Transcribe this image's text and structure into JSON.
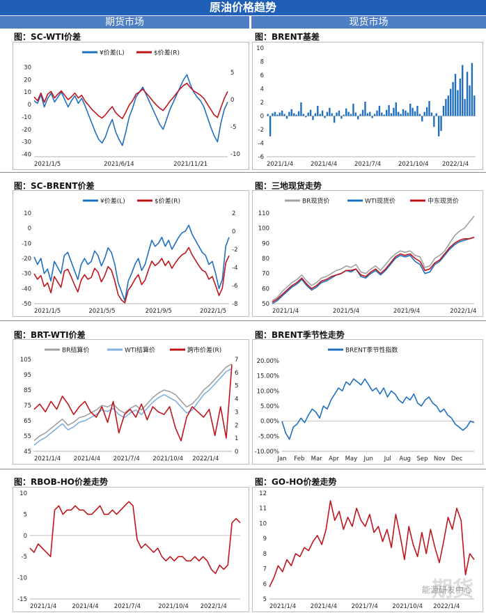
{
  "page": {
    "title": "原油价格趋势",
    "futures_header": "期货市场",
    "spot_header": "现货市场",
    "watermark": "期货",
    "watermark_sub": "能源研发中心"
  },
  "colors": {
    "blue": "#1f6fc0",
    "red": "#c0141c",
    "gray": "#a0a0a0",
    "lightblue": "#7fb0e0"
  },
  "chart_data": [
    {
      "id": "sc_wti",
      "panel_title": "图：SC-WTI价差",
      "type": "line",
      "x_ticks": [
        "2021/1/5",
        "2021/6/14",
        "2021/11/21"
      ],
      "x_tick_pos": [
        0.0,
        0.36,
        0.72
      ],
      "y_left": {
        "ticks": [
          30,
          20,
          10,
          0,
          -10,
          -20,
          -30,
          -40
        ],
        "range": [
          -42,
          32
        ]
      },
      "y_right": {
        "ticks": [
          5,
          0,
          -5,
          -10
        ],
        "range": [
          -10.5,
          6.4
        ]
      },
      "series": [
        {
          "name": "¥价差(L)",
          "axis": "left",
          "color": "blue",
          "values": [
            3,
            1,
            8,
            -2,
            5,
            9,
            2,
            6,
            10,
            4,
            -2,
            3,
            7,
            1,
            5,
            -1,
            -8,
            -15,
            -22,
            -28,
            -31,
            -26,
            -18,
            -12,
            -22,
            -28,
            -33,
            -22,
            -10,
            -3,
            6,
            10,
            14,
            8,
            2,
            -4,
            -10,
            -16,
            -20,
            -12,
            -4,
            2,
            8,
            14,
            20,
            24,
            16,
            10,
            6,
            3,
            -2,
            -10,
            -18,
            -25,
            -30,
            -15,
            -4,
            2
          ]
        },
        {
          "name": "$价差(R)",
          "axis": "right",
          "color": "red",
          "values": [
            0.5,
            -0.2,
            1.2,
            -0.5,
            1,
            1.5,
            0.3,
            1,
            1.6,
            0.8,
            0,
            0.5,
            1.2,
            0.3,
            0.8,
            -0.3,
            -1,
            -1.8,
            -2.4,
            -3,
            -3.4,
            -2.8,
            -2,
            -1.3,
            -2.4,
            -3,
            -3.5,
            -2.3,
            -1,
            -0.2,
            1,
            1.4,
            1.9,
            1.2,
            0.5,
            -0.3,
            -1,
            -1.6,
            -2,
            -1.2,
            -0.3,
            0.4,
            1.2,
            2,
            2.6,
            3,
            2.2,
            1.6,
            1.2,
            0.8,
            0.2,
            -0.8,
            -1.8,
            -2.8,
            -3.3,
            -1.5,
            0.2,
            1.5
          ]
        }
      ]
    },
    {
      "id": "brent_basis",
      "panel_title": "图：BRENT基差",
      "type": "bar",
      "x_ticks": [
        "2021/1/4",
        "2021/4/4",
        "2021/7/4",
        "2021/10/4",
        "2022/1/4"
      ],
      "x_tick_pos": [
        0.0,
        0.21,
        0.42,
        0.63,
        0.84
      ],
      "y_left": {
        "ticks": [
          10,
          8,
          6,
          4,
          2,
          0,
          -2,
          -4,
          -6
        ],
        "range": [
          -6,
          10
        ]
      },
      "series": [
        {
          "name": "BRENT基差",
          "axis": "left",
          "color": "blue",
          "values": [
            0.3,
            -3,
            0.4,
            0.6,
            0.2,
            0.5,
            0.8,
            0.3,
            -0.4,
            0.6,
            1,
            0.4,
            0.2,
            0.7,
            2,
            0.3,
            -0.2,
            0.5,
            0.9,
            -0.6,
            0.4,
            1.5,
            0.3,
            0.8,
            -0.3,
            0.6,
            1.2,
            0.4,
            -1,
            0.5,
            0.8,
            -0.4,
            0.2,
            1.1,
            0.6,
            0.3,
            1.8,
            0.5,
            -0.5,
            0.3,
            0.9,
            2.1,
            0.4,
            0.6,
            -0.3,
            0.3,
            0.8,
            1.5,
            0.5,
            0.2,
            0.9,
            1.6,
            0.4,
            1.2,
            2,
            0.6,
            0.3,
            1,
            0.8,
            0.5,
            1.8,
            1.2,
            0.7,
            1.5,
            0.3,
            -0.8,
            0.6,
            1.3,
            2.2,
            0.5,
            -1.6,
            0.4,
            -3,
            -2.2,
            1.5,
            2.5,
            3,
            4,
            5,
            6.2,
            3.8,
            5.5,
            7.5,
            2.5,
            6.5,
            4.5,
            7.8,
            3
          ]
        }
      ]
    },
    {
      "id": "sc_brent",
      "panel_title": "图：SC-BRENT价差",
      "type": "line",
      "x_ticks": [
        "2021/1/5",
        "2021/5/5",
        "2021/9/5",
        "2022/1/5"
      ],
      "x_tick_pos": [
        0.0,
        0.28,
        0.57,
        0.85
      ],
      "y_left": {
        "ticks": [
          10,
          0,
          -10,
          -20,
          -30,
          -40,
          -50
        ],
        "range": [
          -50,
          10
        ]
      },
      "y_right": {
        "ticks": [
          2,
          0,
          -2,
          -4,
          -6,
          -8
        ],
        "range": [
          -8,
          2
        ]
      },
      "series": [
        {
          "name": "¥价差(L)",
          "axis": "left",
          "color": "blue",
          "values": [
            -19,
            -24,
            -20,
            -30,
            -27,
            -35,
            -22,
            -26,
            -30,
            -18,
            -16,
            -22,
            -28,
            -34,
            -24,
            -20,
            -24,
            -22,
            -15,
            -18,
            -25,
            -20,
            -13,
            -16,
            -24,
            -36,
            -42,
            -48,
            -35,
            -30,
            -24,
            -20,
            -28,
            -24,
            -16,
            -8,
            -12,
            -10,
            -6,
            -12,
            -8,
            -14,
            -10,
            -6,
            -3,
            -2,
            2,
            -4,
            -8,
            -12,
            -16,
            -18,
            -24,
            -22,
            -30,
            -40,
            -34,
            -12,
            -6
          ]
        },
        {
          "name": "$价差(R)",
          "axis": "right",
          "color": "red",
          "values": [
            -4.7,
            -5.3,
            -4.9,
            -6.1,
            -5.7,
            -6.8,
            -5,
            -5.6,
            -6.2,
            -4.4,
            -4.2,
            -5,
            -5.9,
            -6.7,
            -5.4,
            -4.8,
            -5.3,
            -5.1,
            -4.1,
            -4.5,
            -5.6,
            -4.9,
            -3.9,
            -4.3,
            -5.5,
            -7,
            -7.6,
            -7.9,
            -6.5,
            -6,
            -5.3,
            -4.8,
            -5.9,
            -5.4,
            -4.3,
            -3.3,
            -3.8,
            -3.5,
            -3,
            -3.8,
            -3.3,
            -4.1,
            -3.5,
            -3,
            -2.6,
            -2.4,
            -1.8,
            -2.6,
            -3.2,
            -3.8,
            -4.3,
            -4.5,
            -5.3,
            -5,
            -6,
            -7.1,
            -6.3,
            -3.5,
            -2.7
          ]
        }
      ]
    },
    {
      "id": "spot_three",
      "panel_title": "图：三地现货走势",
      "type": "line",
      "x_ticks": [
        "2021/1/4",
        "2021/5/4",
        "2021/9/4",
        "2022/1/4"
      ],
      "x_tick_pos": [
        0.0,
        0.3,
        0.6,
        0.88
      ],
      "y_left": {
        "ticks": [
          110,
          100,
          90,
          80,
          70,
          60,
          50
        ],
        "range": [
          50,
          110
        ]
      },
      "series": [
        {
          "name": "BR现货价",
          "axis": "left",
          "color": "gray",
          "values": [
            52,
            54,
            58,
            61,
            64,
            66,
            69,
            65,
            62,
            64,
            67,
            68,
            70,
            72,
            73,
            75,
            74,
            76,
            71,
            70,
            73,
            75,
            72,
            76,
            80,
            83,
            85,
            84,
            85,
            82,
            81,
            74,
            75,
            80,
            82,
            85,
            90,
            95,
            98,
            100,
            104,
            108
          ]
        },
        {
          "name": "WTI现货价",
          "axis": "left",
          "color": "blue",
          "values": [
            50,
            52,
            55,
            58,
            61,
            63,
            66,
            62,
            59,
            61,
            64,
            65,
            67,
            69,
            70,
            72,
            71,
            73,
            68,
            67,
            70,
            72,
            69,
            72,
            76,
            80,
            82,
            81,
            82,
            78,
            76,
            70,
            71,
            76,
            78,
            82,
            86,
            89,
            91,
            92,
            93,
            94
          ]
        },
        {
          "name": "中东现货价",
          "axis": "left",
          "color": "red",
          "values": [
            51,
            53,
            56,
            59,
            62,
            64,
            67,
            63,
            60,
            62,
            65,
            66,
            68,
            69,
            70,
            72,
            72,
            73,
            69,
            68,
            71,
            73,
            70,
            73,
            77,
            81,
            83,
            82,
            83,
            80,
            78,
            72,
            73,
            77,
            79,
            83,
            87,
            90,
            92,
            93,
            93,
            94
          ]
        }
      ]
    },
    {
      "id": "brt_wti",
      "panel_title": "图：BRT-WTI价差",
      "type": "line",
      "x_ticks": [
        "2021/1/4",
        "2021/4/4",
        "2021/7/4",
        "2021/10/4",
        "2022/1/4"
      ],
      "x_tick_pos": [
        0.0,
        0.2,
        0.4,
        0.6,
        0.8
      ],
      "y_left": {
        "ticks": [
          105,
          95,
          85,
          75,
          65,
          55,
          45
        ],
        "range": [
          45,
          105
        ]
      },
      "y_right": {
        "ticks": [
          7,
          6,
          5,
          4,
          3,
          2,
          1,
          0
        ],
        "range": [
          0,
          7
        ]
      },
      "series": [
        {
          "name": "BR结算价",
          "axis": "left",
          "color": "gray",
          "values": [
            52,
            55,
            57,
            60,
            63,
            66,
            62,
            64,
            67,
            68,
            70,
            72,
            75,
            74,
            76,
            72,
            70,
            73,
            75,
            72,
            76,
            80,
            83,
            85,
            84,
            82,
            78,
            74,
            76,
            80,
            85,
            88,
            92,
            96,
            100,
            102
          ]
        },
        {
          "name": "WTI结算价",
          "axis": "left",
          "color": "lightblue",
          "values": [
            49,
            52,
            54,
            57,
            60,
            63,
            59,
            61,
            64,
            65,
            67,
            69,
            72,
            71,
            73,
            69,
            67,
            70,
            72,
            69,
            73,
            77,
            80,
            82,
            80,
            78,
            74,
            70,
            72,
            77,
            82,
            85,
            89,
            93,
            97,
            99
          ]
        },
        {
          "name": "跨市价差(R)",
          "axis": "right",
          "color": "red",
          "values": [
            3.2,
            3.6,
            3,
            3.8,
            3.2,
            4.2,
            3.6,
            2.8,
            3.4,
            3.8,
            3,
            2.6,
            3.4,
            2.2,
            3.8,
            1.4,
            2.8,
            3.2,
            2.6,
            3.6,
            2.4,
            3.4,
            3,
            2.8,
            3.4,
            1.8,
            0.8,
            2.6,
            3.4,
            3,
            2.6,
            3.2,
            1.2,
            3.4,
            1,
            6.6
          ]
        }
      ]
    },
    {
      "id": "brent_season",
      "panel_title": "图：BRENT季节性走势",
      "type": "line",
      "x_ticks": [
        "Jan",
        "Feb",
        "Mar",
        "Apr",
        "May",
        "Jun",
        "Jul",
        "Aug",
        "Sep",
        "Nov",
        "Dec"
      ],
      "x_tick_pos": [
        0.0,
        0.09,
        0.18,
        0.27,
        0.36,
        0.45,
        0.55,
        0.64,
        0.73,
        0.82,
        0.91
      ],
      "y_left": {
        "ticks": [
          "20.00%",
          "15.00%",
          "10.00%",
          "5.00%",
          "0.00%",
          "-5.00%",
          "-10.00%"
        ],
        "range": [
          -10,
          20
        ]
      },
      "series": [
        {
          "name": "BRENT季节性指数",
          "axis": "left",
          "color": "blue",
          "values": [
            0,
            -4,
            -6,
            -2,
            -1,
            1,
            -0.5,
            2,
            4,
            3,
            1,
            5,
            4,
            7,
            9,
            11,
            10,
            13,
            12,
            14,
            13,
            12,
            14,
            12,
            10,
            11,
            9,
            11,
            8,
            10,
            9,
            7,
            6,
            8,
            7,
            9,
            6,
            5,
            7,
            8,
            6,
            5,
            3,
            4,
            2,
            1,
            -1,
            -2,
            -3,
            -2,
            0,
            -0.5
          ]
        }
      ]
    },
    {
      "id": "rbob_ho",
      "panel_title": "图：RBOB-HO价差走势",
      "type": "line",
      "x_ticks": [
        "2021/1/4",
        "2021/4/4",
        "2021/7/4",
        "2021/10/4",
        "2022/1/4"
      ],
      "x_tick_pos": [
        0.0,
        0.2,
        0.4,
        0.61,
        0.81
      ],
      "y_left": {
        "ticks": [
          10,
          5,
          0,
          -5,
          -10,
          -15
        ],
        "range": [
          -15,
          10
        ]
      },
      "series": [
        {
          "name": "RBOB-HO价差",
          "axis": "left",
          "color": "red",
          "values": [
            -3,
            -4,
            -2,
            -3,
            -4,
            -5,
            6,
            7,
            5,
            6,
            6,
            7,
            6,
            6,
            5,
            5,
            6,
            7,
            5,
            5,
            6,
            5,
            6,
            7,
            8,
            7,
            -1,
            -3,
            -2,
            -3,
            -4,
            -3,
            -5,
            -6,
            -5,
            -6,
            -5,
            -5,
            -6,
            -6,
            -5,
            -6,
            -5,
            -6,
            -8,
            -9,
            -7,
            -8,
            -7,
            3,
            4,
            3
          ]
        }
      ]
    },
    {
      "id": "go_ho",
      "panel_title": "图：GO-HO价差走势",
      "type": "line",
      "x_ticks": [
        "2021/1/4",
        "2021/4/4",
        "2021/7/4",
        "2021/10/4",
        "2022/1/4"
      ],
      "x_tick_pos": [
        0.0,
        0.2,
        0.4,
        0.6,
        0.8
      ],
      "y_left": {
        "ticks": [
          12,
          11,
          10,
          9,
          8,
          7,
          6,
          5
        ],
        "range": [
          5,
          12
        ]
      },
      "series": [
        {
          "name": "GO-HO价差",
          "axis": "left",
          "color": "red",
          "values": [
            5.8,
            6.4,
            7.2,
            6.8,
            7.6,
            7.2,
            8,
            7.8,
            8.4,
            8.2,
            8.8,
            9.2,
            8.6,
            9.6,
            11.5,
            10.2,
            10.8,
            9.6,
            10.4,
            9.8,
            11,
            10.2,
            9.8,
            10.6,
            9.4,
            9.8,
            8.8,
            9.6,
            8.4,
            10.6,
            9.2,
            7.6,
            9.8,
            8.6,
            7.8,
            9.4,
            8,
            9.6,
            8.4,
            7.4,
            8.8,
            10.4,
            9.6,
            11,
            10.2,
            6.6,
            8,
            7.6
          ]
        }
      ]
    }
  ]
}
